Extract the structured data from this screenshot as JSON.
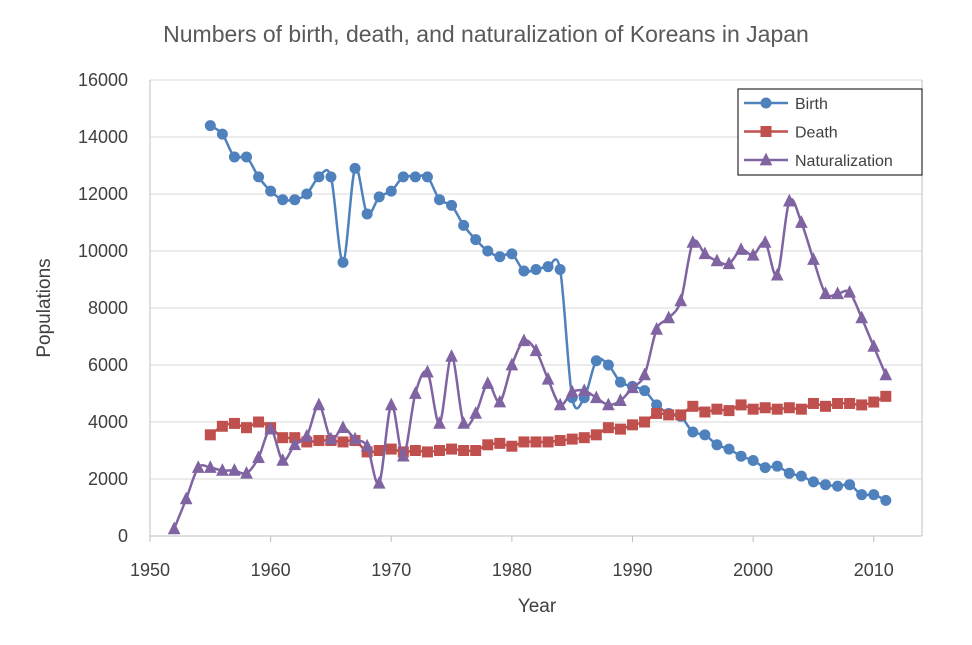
{
  "chart_data": {
    "type": "line",
    "title": "Numbers of birth, death, and naturalization of Koreans in Japan",
    "xlabel": "Year",
    "ylabel": "Populations",
    "xlim": [
      1950,
      2014
    ],
    "ylim": [
      0,
      16000
    ],
    "xticks": [
      1950,
      1960,
      1970,
      1980,
      1990,
      2000,
      2010
    ],
    "yticks": [
      0,
      2000,
      4000,
      6000,
      8000,
      10000,
      12000,
      14000,
      16000
    ],
    "grid": "horizontal",
    "legend_position": "top-right",
    "series": [
      {
        "name": "Birth",
        "color": "#4f81bd",
        "marker": "circle",
        "points": [
          [
            1955,
            14400
          ],
          [
            1956,
            14100
          ],
          [
            1957,
            13300
          ],
          [
            1958,
            13300
          ],
          [
            1959,
            12600
          ],
          [
            1960,
            12100
          ],
          [
            1961,
            11800
          ],
          [
            1962,
            11800
          ],
          [
            1963,
            12000
          ],
          [
            1964,
            12600
          ],
          [
            1965,
            12600
          ],
          [
            1966,
            9600
          ],
          [
            1967,
            12900
          ],
          [
            1968,
            11300
          ],
          [
            1969,
            11900
          ],
          [
            1970,
            12100
          ],
          [
            1971,
            12600
          ],
          [
            1972,
            12600
          ],
          [
            1973,
            12600
          ],
          [
            1974,
            11800
          ],
          [
            1975,
            11600
          ],
          [
            1976,
            10900
          ],
          [
            1977,
            10400
          ],
          [
            1978,
            10000
          ],
          [
            1979,
            9800
          ],
          [
            1980,
            9900
          ],
          [
            1981,
            9300
          ],
          [
            1982,
            9350
          ],
          [
            1983,
            9450
          ],
          [
            1984,
            9350
          ],
          [
            1985,
            4850
          ],
          [
            1986,
            4850
          ],
          [
            1987,
            6150
          ],
          [
            1988,
            6000
          ],
          [
            1989,
            5400
          ],
          [
            1990,
            5250
          ],
          [
            1991,
            5100
          ],
          [
            1992,
            4600
          ],
          [
            1993,
            4300
          ],
          [
            1994,
            4200
          ],
          [
            1995,
            3650
          ],
          [
            1996,
            3550
          ],
          [
            1997,
            3200
          ],
          [
            1998,
            3050
          ],
          [
            1999,
            2800
          ],
          [
            2000,
            2650
          ],
          [
            2001,
            2400
          ],
          [
            2002,
            2450
          ],
          [
            2003,
            2200
          ],
          [
            2004,
            2100
          ],
          [
            2005,
            1900
          ],
          [
            2006,
            1800
          ],
          [
            2007,
            1750
          ],
          [
            2008,
            1800
          ],
          [
            2009,
            1450
          ],
          [
            2010,
            1450
          ],
          [
            2011,
            1250
          ]
        ]
      },
      {
        "name": "Death",
        "color": "#c0504d",
        "marker": "square",
        "points": [
          [
            1955,
            3550
          ],
          [
            1956,
            3850
          ],
          [
            1957,
            3950
          ],
          [
            1958,
            3800
          ],
          [
            1959,
            4000
          ],
          [
            1960,
            3800
          ],
          [
            1961,
            3450
          ],
          [
            1962,
            3450
          ],
          [
            1963,
            3300
          ],
          [
            1964,
            3350
          ],
          [
            1965,
            3350
          ],
          [
            1966,
            3300
          ],
          [
            1967,
            3350
          ],
          [
            1968,
            2950
          ],
          [
            1969,
            3000
          ],
          [
            1970,
            3050
          ],
          [
            1971,
            2950
          ],
          [
            1972,
            3000
          ],
          [
            1973,
            2950
          ],
          [
            1974,
            3000
          ],
          [
            1975,
            3050
          ],
          [
            1976,
            3000
          ],
          [
            1977,
            3000
          ],
          [
            1978,
            3200
          ],
          [
            1979,
            3250
          ],
          [
            1980,
            3150
          ],
          [
            1981,
            3300
          ],
          [
            1982,
            3300
          ],
          [
            1983,
            3300
          ],
          [
            1984,
            3350
          ],
          [
            1985,
            3400
          ],
          [
            1986,
            3450
          ],
          [
            1987,
            3550
          ],
          [
            1988,
            3800
          ],
          [
            1989,
            3750
          ],
          [
            1990,
            3900
          ],
          [
            1991,
            4000
          ],
          [
            1992,
            4300
          ],
          [
            1993,
            4250
          ],
          [
            1994,
            4250
          ],
          [
            1995,
            4550
          ],
          [
            1996,
            4350
          ],
          [
            1997,
            4450
          ],
          [
            1998,
            4400
          ],
          [
            1999,
            4600
          ],
          [
            2000,
            4450
          ],
          [
            2001,
            4500
          ],
          [
            2002,
            4450
          ],
          [
            2003,
            4500
          ],
          [
            2004,
            4450
          ],
          [
            2005,
            4650
          ],
          [
            2006,
            4550
          ],
          [
            2007,
            4650
          ],
          [
            2008,
            4650
          ],
          [
            2009,
            4600
          ],
          [
            2010,
            4700
          ],
          [
            2011,
            4900
          ]
        ]
      },
      {
        "name": "Naturalization",
        "color": "#8064a2",
        "marker": "triangle",
        "points": [
          [
            1952,
            250
          ],
          [
            1953,
            1300
          ],
          [
            1954,
            2400
          ],
          [
            1955,
            2400
          ],
          [
            1956,
            2300
          ],
          [
            1957,
            2300
          ],
          [
            1958,
            2200
          ],
          [
            1959,
            2750
          ],
          [
            1960,
            3750
          ],
          [
            1961,
            2650
          ],
          [
            1962,
            3200
          ],
          [
            1963,
            3500
          ],
          [
            1964,
            4600
          ],
          [
            1965,
            3400
          ],
          [
            1966,
            3800
          ],
          [
            1967,
            3400
          ],
          [
            1968,
            3150
          ],
          [
            1969,
            1850
          ],
          [
            1970,
            4600
          ],
          [
            1971,
            2800
          ],
          [
            1972,
            5000
          ],
          [
            1973,
            5750
          ],
          [
            1974,
            3950
          ],
          [
            1975,
            6300
          ],
          [
            1976,
            3950
          ],
          [
            1977,
            4300
          ],
          [
            1978,
            5350
          ],
          [
            1979,
            4700
          ],
          [
            1980,
            6000
          ],
          [
            1981,
            6850
          ],
          [
            1982,
            6500
          ],
          [
            1983,
            5500
          ],
          [
            1984,
            4600
          ],
          [
            1985,
            5050
          ],
          [
            1986,
            5100
          ],
          [
            1987,
            4850
          ],
          [
            1988,
            4600
          ],
          [
            1989,
            4750
          ],
          [
            1990,
            5200
          ],
          [
            1991,
            5650
          ],
          [
            1992,
            7250
          ],
          [
            1993,
            7650
          ],
          [
            1994,
            8250
          ],
          [
            1995,
            10300
          ],
          [
            1996,
            9900
          ],
          [
            1997,
            9650
          ],
          [
            1998,
            9550
          ],
          [
            1999,
            10050
          ],
          [
            2000,
            9850
          ],
          [
            2001,
            10300
          ],
          [
            2002,
            9150
          ],
          [
            2003,
            11750
          ],
          [
            2004,
            11000
          ],
          [
            2005,
            9700
          ],
          [
            2006,
            8500
          ],
          [
            2007,
            8500
          ],
          [
            2008,
            8550
          ],
          [
            2009,
            7650
          ],
          [
            2010,
            6650
          ],
          [
            2011,
            5650
          ]
        ]
      }
    ]
  }
}
